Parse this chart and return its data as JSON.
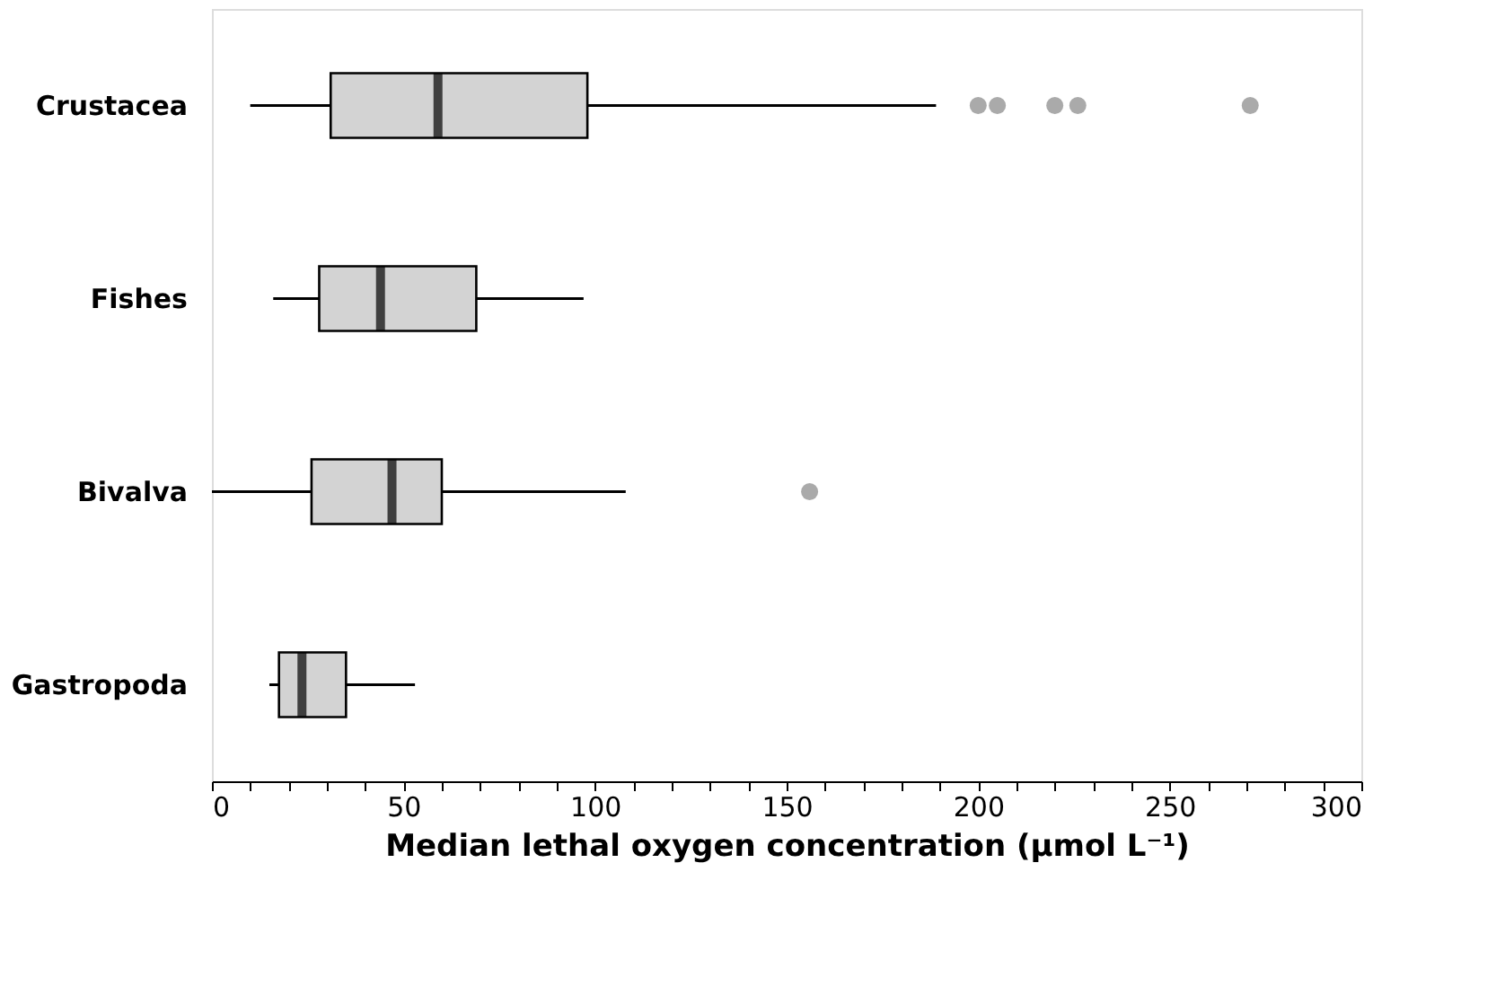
{
  "chart_data": {
    "type": "box",
    "xlabel": "Median lethal oxygen concentration (µmol L⁻¹)",
    "orientation": "horizontal",
    "categories": [
      "Crustacea",
      "Fishes",
      "Bivalva",
      "Gastropoda"
    ],
    "boxes": [
      {
        "low": 10,
        "q1": 31,
        "median": 59,
        "q3": 98,
        "high": 189,
        "outliers": [
          200,
          205,
          220,
          226,
          271
        ]
      },
      {
        "low": 16,
        "q1": 28,
        "median": 44,
        "q3": 69,
        "high": 97
      },
      {
        "low": 0,
        "q1": 26,
        "median": 47,
        "q3": 60,
        "high": 108,
        "outliers": [
          156
        ]
      },
      {
        "low": 15,
        "q1": 17.5,
        "median": 23.5,
        "q3": 35,
        "high": 53
      }
    ],
    "color": "#d3d3d3",
    "xlim": [
      0,
      300
    ],
    "xticks": [
      0,
      {
        "value": 10,
        "label": null
      },
      {
        "value": 20,
        "label": null
      },
      {
        "value": 30,
        "label": null
      },
      {
        "value": 40,
        "label": null
      },
      50,
      {
        "value": 60,
        "label": null
      },
      {
        "value": 70,
        "label": null
      },
      {
        "value": 80,
        "label": null
      },
      {
        "value": 90,
        "label": null
      },
      100,
      {
        "value": 110,
        "label": null
      },
      {
        "value": 120,
        "label": null
      },
      {
        "value": 130,
        "label": null
      },
      {
        "value": 140,
        "label": null
      },
      150,
      {
        "value": 160,
        "label": null
      },
      {
        "value": 170,
        "label": null
      },
      {
        "value": 180,
        "label": null
      },
      {
        "value": 190,
        "label": null
      },
      200,
      {
        "value": 210,
        "label": null
      },
      {
        "value": 220,
        "label": null
      },
      {
        "value": 230,
        "label": null
      },
      {
        "value": 240,
        "label": null
      },
      250,
      {
        "value": 260,
        "label": null
      },
      {
        "value": 270,
        "label": null
      },
      {
        "value": 280,
        "label": null
      },
      {
        "value": 290,
        "label": null
      },
      300
    ],
    "grid": false
  }
}
